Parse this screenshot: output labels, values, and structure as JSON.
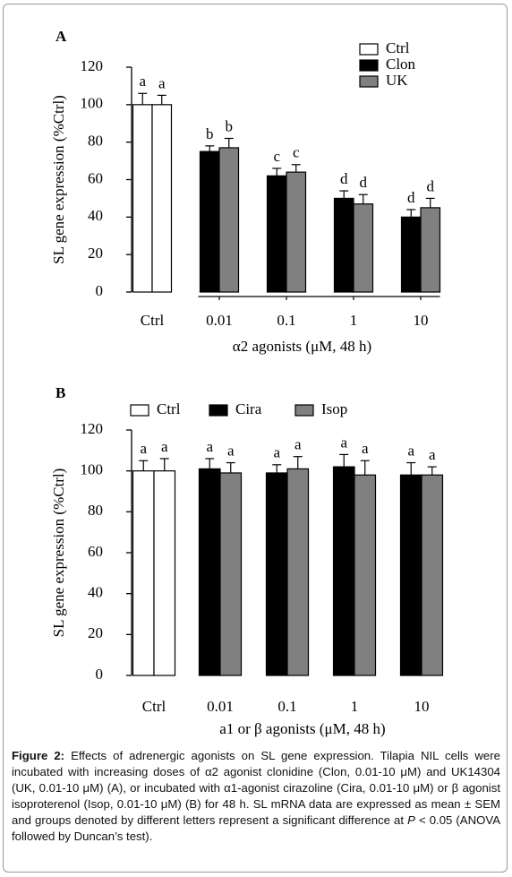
{
  "chart_data": [
    {
      "type": "bar",
      "panel": "A",
      "y_label": "SL gene expression (%Ctrl)",
      "x_label": "α2 agonists  (μM, 48 h)",
      "ylim": [
        0,
        120
      ],
      "yticks": [
        0,
        20,
        40,
        60,
        80,
        100,
        120
      ],
      "legend": "top-right",
      "bracket": true,
      "control": {
        "name": "Ctrl",
        "color": "#ffffff",
        "values": [
          100,
          100
        ],
        "errors": [
          6,
          5
        ],
        "letters": [
          "a",
          "a"
        ]
      },
      "categories": [
        "0.01",
        "0.1",
        "1",
        "10"
      ],
      "series": [
        {
          "name": "Clon",
          "color": "#000000",
          "values": [
            75,
            62,
            50,
            40
          ],
          "errors": [
            3,
            4,
            4,
            4
          ],
          "letters": [
            "b",
            "c",
            "d",
            "d"
          ]
        },
        {
          "name": "UK",
          "color": "#808080",
          "values": [
            77,
            64,
            47,
            45
          ],
          "errors": [
            5,
            4,
            5,
            5
          ],
          "letters": [
            "b",
            "c",
            "d",
            "d"
          ]
        }
      ]
    },
    {
      "type": "bar",
      "panel": "B",
      "y_label": "SL gene expression (%Ctrl)",
      "x_label": "a1 or β agonists  (μM, 48 h)",
      "ylim": [
        0,
        120
      ],
      "yticks": [
        0,
        20,
        40,
        60,
        80,
        100,
        120
      ],
      "legend": "top-left",
      "bracket": false,
      "control": {
        "name": "Ctrl",
        "color": "#ffffff",
        "values": [
          100,
          100
        ],
        "errors": [
          5,
          6
        ],
        "letters": [
          "a",
          "a"
        ]
      },
      "categories": [
        "0.01",
        "0.1",
        "1",
        "10"
      ],
      "series": [
        {
          "name": "Cira",
          "color": "#000000",
          "values": [
            101,
            99,
            102,
            98
          ],
          "errors": [
            5,
            4,
            6,
            6
          ],
          "letters": [
            "a",
            "a",
            "a",
            "a"
          ]
        },
        {
          "name": "Isop",
          "color": "#808080",
          "values": [
            99,
            101,
            98,
            98
          ],
          "errors": [
            5,
            6,
            7,
            4
          ],
          "letters": [
            "a",
            "a",
            "a",
            "a"
          ]
        }
      ]
    }
  ],
  "caption": {
    "label": "Figure 2:",
    "text_before": "Effects of adrenergic agonists on SL gene expression. Tilapia NIL cells were incubated with increasing doses of α2 agonist clonidine (Clon, 0.01-10 μM) and UK14304 (UK, 0.01-10 μM) (A), or incubated with α1-agonist cirazoline (Cira, 0.01-10 μM) or β agonist isoproterenol (Isop, 0.01-10 μM) (B) for 48 h. SL mRNA data are expressed as mean ± SEM and groups denoted by different letters represent a significant difference at",
    "p": "P",
    "text_after": "< 0.05 (ANOVA followed by Duncan’s test)."
  }
}
